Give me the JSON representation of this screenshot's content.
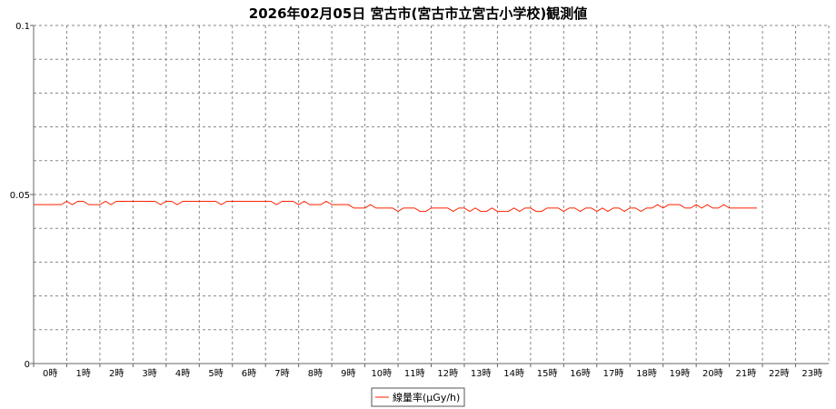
{
  "chart_data": {
    "type": "line",
    "title": "2026年02月05日 宮古市(宮古市立宮古小学校)観測値",
    "ylim": [
      0,
      0.1
    ],
    "yticks": [
      "0",
      "0.05",
      "0.1"
    ],
    "y_minor_step": 0.01,
    "xlim_hours": [
      0,
      24
    ],
    "xtick_labels": [
      "0時",
      "1時",
      "2時",
      "3時",
      "4時",
      "5時",
      "6時",
      "7時",
      "8時",
      "9時",
      "10時",
      "11時",
      "12時",
      "13時",
      "14時",
      "15時",
      "16時",
      "17時",
      "18時",
      "19時",
      "20時",
      "21時",
      "22時",
      "23時"
    ],
    "grid": true,
    "legend_placement": "bottom",
    "series": [
      {
        "name": "線量率(μGy/h)",
        "color": "#ff2200",
        "interval_minutes": 10,
        "start": "0:00",
        "values": [
          0.047,
          0.047,
          0.047,
          0.047,
          0.047,
          0.047,
          0.048,
          0.047,
          0.048,
          0.048,
          0.047,
          0.047,
          0.047,
          0.048,
          0.047,
          0.048,
          0.048,
          0.048,
          0.048,
          0.048,
          0.048,
          0.048,
          0.048,
          0.047,
          0.048,
          0.048,
          0.047,
          0.048,
          0.048,
          0.048,
          0.048,
          0.048,
          0.048,
          0.048,
          0.047,
          0.048,
          0.048,
          0.048,
          0.048,
          0.048,
          0.048,
          0.048,
          0.048,
          0.048,
          0.047,
          0.048,
          0.048,
          0.048,
          0.047,
          0.048,
          0.047,
          0.047,
          0.047,
          0.048,
          0.047,
          0.047,
          0.047,
          0.047,
          0.046,
          0.046,
          0.046,
          0.047,
          0.046,
          0.046,
          0.046,
          0.046,
          0.045,
          0.046,
          0.046,
          0.046,
          0.045,
          0.045,
          0.046,
          0.046,
          0.046,
          0.046,
          0.045,
          0.046,
          0.046,
          0.045,
          0.046,
          0.045,
          0.045,
          0.046,
          0.045,
          0.045,
          0.045,
          0.046,
          0.045,
          0.046,
          0.046,
          0.045,
          0.045,
          0.046,
          0.046,
          0.046,
          0.045,
          0.046,
          0.046,
          0.045,
          0.046,
          0.046,
          0.045,
          0.046,
          0.045,
          0.046,
          0.046,
          0.045,
          0.046,
          0.046,
          0.045,
          0.046,
          0.046,
          0.047,
          0.046,
          0.047,
          0.047,
          0.047,
          0.046,
          0.046,
          0.047,
          0.046,
          0.047,
          0.046,
          0.046,
          0.047,
          0.046,
          0.046,
          0.046,
          0.046,
          0.046,
          0.046
        ]
      }
    ]
  }
}
